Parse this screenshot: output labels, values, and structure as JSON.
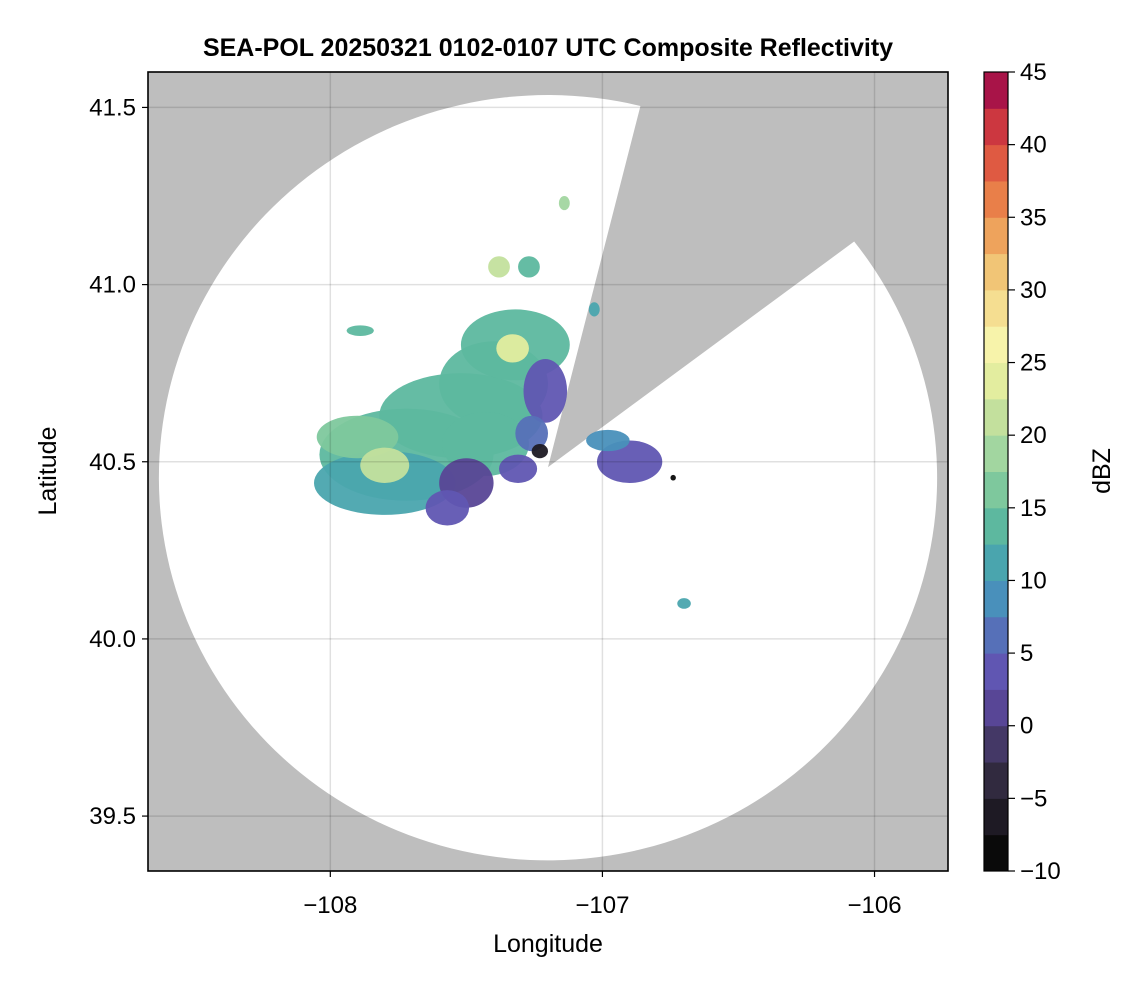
{
  "chart_data": {
    "type": "heatmap",
    "title": "SEA-POL 20250321 0102-0107 UTC Composite Reflectivity",
    "xlabel": "Longitude",
    "ylabel": "Latitude",
    "xlim": [
      -108.67,
      -105.73
    ],
    "ylim": [
      39.345,
      41.6
    ],
    "x_ticks": [
      -108,
      -107,
      -106
    ],
    "x_tick_labels": [
      "−108",
      "−107",
      "−106"
    ],
    "y_ticks": [
      39.5,
      40.0,
      40.5,
      41.0,
      41.5
    ],
    "y_tick_labels": [
      "39.5",
      "40.0",
      "40.5",
      "41.0",
      "41.5"
    ],
    "grid": true,
    "background_color": "#bebebe",
    "coverage_color": "#ffffff",
    "radar_center": {
      "lon": -107.2,
      "lat": 40.485
    },
    "radar_range_lon_extent": [
      -108.63,
      -105.77
    ],
    "radar_range_lat_extent": [
      39.375,
      41.535
    ],
    "blocked_sector_edges": [
      {
        "lon": -106.85,
        "lat": 41.535
      },
      {
        "lon": -106.06,
        "lat": 41.13
      }
    ],
    "colorbar": {
      "label": "dBZ",
      "min": -10,
      "max": 45,
      "step": 2.5,
      "ticks": [
        -10,
        -5,
        0,
        5,
        10,
        15,
        20,
        25,
        30,
        35,
        40,
        45
      ],
      "tick_labels": [
        "−10",
        "−5",
        "0",
        "5",
        "10",
        "15",
        "20",
        "25",
        "30",
        "35",
        "40",
        "45"
      ],
      "colors": [
        "#0a0a0a",
        "#1e1a24",
        "#312a3f",
        "#443866",
        "#584696",
        "#6056b2",
        "#5670b8",
        "#4990bb",
        "#4aa5ae",
        "#5db89f",
        "#7ec89d",
        "#a2d6a0",
        "#c3e09d",
        "#e3ed9f",
        "#f7f3aa",
        "#f5de91",
        "#f1c576",
        "#eea35c",
        "#e97f49",
        "#df5a42",
        "#cc3740",
        "#a81448",
        "#c12a6b",
        "#d94c95",
        "#e27cb8",
        "#d993c8",
        "#b98dc4",
        "#9a6bb0",
        "#7a4794",
        "#5a2470",
        "#3d0a50",
        "#3d0a50"
      ]
    },
    "echo_cells": [
      {
        "lon": -107.72,
        "lat": 40.52,
        "r_lon": 0.32,
        "r_lat": 0.13,
        "dbz": 13.5
      },
      {
        "lon": -107.8,
        "lat": 40.44,
        "r_lon": 0.26,
        "r_lat": 0.09,
        "dbz": 12.0
      },
      {
        "lon": -107.52,
        "lat": 40.63,
        "r_lon": 0.3,
        "r_lat": 0.12,
        "dbz": 14.0
      },
      {
        "lon": -107.4,
        "lat": 40.72,
        "r_lon": 0.2,
        "r_lat": 0.12,
        "dbz": 13.0
      },
      {
        "lon": -107.32,
        "lat": 40.83,
        "r_lon": 0.2,
        "r_lat": 0.1,
        "dbz": 13.5
      },
      {
        "lon": -107.43,
        "lat": 40.55,
        "r_lon": 0.16,
        "r_lat": 0.09,
        "dbz": 12.5
      },
      {
        "lon": -107.9,
        "lat": 40.57,
        "r_lon": 0.15,
        "r_lat": 0.06,
        "dbz": 15.5
      },
      {
        "lon": -107.8,
        "lat": 40.49,
        "r_lon": 0.09,
        "r_lat": 0.05,
        "dbz": 21.5
      },
      {
        "lon": -107.33,
        "lat": 40.82,
        "r_lon": 0.06,
        "r_lat": 0.04,
        "dbz": 23.0
      },
      {
        "lon": -107.5,
        "lat": 40.44,
        "r_lon": 0.1,
        "r_lat": 0.07,
        "dbz": 1.5
      },
      {
        "lon": -107.57,
        "lat": 40.37,
        "r_lon": 0.08,
        "r_lat": 0.05,
        "dbz": 2.5
      },
      {
        "lon": -107.21,
        "lat": 40.7,
        "r_lon": 0.08,
        "r_lat": 0.09,
        "dbz": 3.5
      },
      {
        "lon": -107.26,
        "lat": 40.58,
        "r_lon": 0.06,
        "r_lat": 0.05,
        "dbz": 5.5
      },
      {
        "lon": -107.23,
        "lat": 40.53,
        "r_lon": 0.03,
        "r_lat": 0.02,
        "dbz": -6.0
      },
      {
        "lon": -107.31,
        "lat": 40.48,
        "r_lon": 0.07,
        "r_lat": 0.04,
        "dbz": 4.0
      },
      {
        "lon": -106.9,
        "lat": 40.5,
        "r_lon": 0.12,
        "r_lat": 0.06,
        "dbz": 3.5
      },
      {
        "lon": -106.98,
        "lat": 40.56,
        "r_lon": 0.08,
        "r_lat": 0.03,
        "dbz": 8.5
      },
      {
        "lon": -107.38,
        "lat": 41.05,
        "r_lon": 0.04,
        "r_lat": 0.03,
        "dbz": 20.0
      },
      {
        "lon": -107.27,
        "lat": 41.05,
        "r_lon": 0.04,
        "r_lat": 0.03,
        "dbz": 14.5
      },
      {
        "lon": -107.14,
        "lat": 41.23,
        "r_lon": 0.02,
        "r_lat": 0.02,
        "dbz": 19.0
      },
      {
        "lon": -107.89,
        "lat": 40.87,
        "r_lon": 0.05,
        "r_lat": 0.015,
        "dbz": 12.5
      },
      {
        "lon": -107.03,
        "lat": 40.93,
        "r_lon": 0.02,
        "r_lat": 0.02,
        "dbz": 12.0
      },
      {
        "lon": -106.7,
        "lat": 40.1,
        "r_lon": 0.025,
        "r_lat": 0.015,
        "dbz": 11.5
      },
      {
        "lon": -106.74,
        "lat": 40.455,
        "r_lon": 0.01,
        "r_lat": 0.008,
        "dbz": -10.0
      }
    ]
  }
}
